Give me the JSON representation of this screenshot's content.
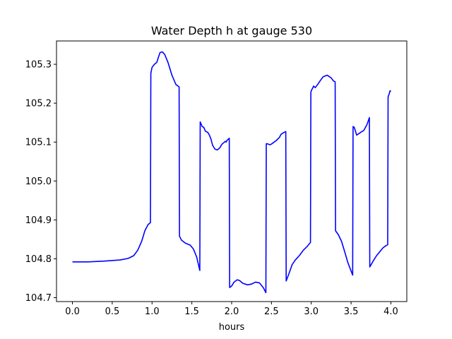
{
  "chart_data": {
    "type": "line",
    "title": "Water Depth h at gauge 530",
    "xlabel": "hours",
    "ylabel": "",
    "xlim": [
      -0.2,
      4.2
    ],
    "ylim": [
      104.69,
      105.36
    ],
    "xticks": [
      0.0,
      0.5,
      1.0,
      1.5,
      2.0,
      2.5,
      3.0,
      3.5,
      4.0
    ],
    "xtick_labels": [
      "0.0",
      "0.5",
      "1.0",
      "1.5",
      "2.0",
      "2.5",
      "3.0",
      "3.5",
      "4.0"
    ],
    "yticks": [
      104.7,
      104.8,
      104.9,
      105.0,
      105.1,
      105.2,
      105.3
    ],
    "ytick_labels": [
      "104.7",
      "104.8",
      "104.9",
      "105.0",
      "105.1",
      "105.2",
      "105.3"
    ],
    "grid": false,
    "series": [
      {
        "color": "#0000ff",
        "points": [
          [
            0.0,
            104.792
          ],
          [
            0.2,
            104.792
          ],
          [
            0.4,
            104.794
          ],
          [
            0.6,
            104.797
          ],
          [
            0.7,
            104.801
          ],
          [
            0.77,
            104.808
          ],
          [
            0.82,
            104.822
          ],
          [
            0.87,
            104.845
          ],
          [
            0.91,
            104.872
          ],
          [
            0.95,
            104.888
          ],
          [
            0.98,
            104.893
          ],
          [
            0.985,
            105.277
          ],
          [
            1.0,
            105.292
          ],
          [
            1.03,
            105.3
          ],
          [
            1.06,
            105.305
          ],
          [
            1.08,
            105.318
          ],
          [
            1.1,
            105.33
          ],
          [
            1.13,
            105.332
          ],
          [
            1.16,
            105.325
          ],
          [
            1.2,
            105.305
          ],
          [
            1.25,
            105.272
          ],
          [
            1.3,
            105.248
          ],
          [
            1.34,
            105.242
          ],
          [
            1.345,
            104.858
          ],
          [
            1.37,
            104.848
          ],
          [
            1.42,
            104.84
          ],
          [
            1.48,
            104.835
          ],
          [
            1.52,
            104.825
          ],
          [
            1.56,
            104.805
          ],
          [
            1.6,
            104.77
          ],
          [
            1.605,
            105.152
          ],
          [
            1.63,
            105.14
          ],
          [
            1.65,
            105.138
          ],
          [
            1.67,
            105.128
          ],
          [
            1.7,
            105.125
          ],
          [
            1.72,
            105.118
          ],
          [
            1.74,
            105.108
          ],
          [
            1.76,
            105.092
          ],
          [
            1.79,
            105.082
          ],
          [
            1.82,
            105.08
          ],
          [
            1.85,
            105.085
          ],
          [
            1.88,
            105.095
          ],
          [
            1.91,
            105.1
          ],
          [
            1.92,
            105.102
          ],
          [
            1.93,
            105.1
          ],
          [
            1.94,
            105.104
          ],
          [
            1.96,
            105.108
          ],
          [
            1.97,
            105.11
          ],
          [
            1.975,
            104.726
          ],
          [
            2.0,
            104.73
          ],
          [
            2.03,
            104.74
          ],
          [
            2.07,
            104.746
          ],
          [
            2.1,
            104.744
          ],
          [
            2.14,
            104.737
          ],
          [
            2.2,
            104.733
          ],
          [
            2.25,
            104.735
          ],
          [
            2.3,
            104.74
          ],
          [
            2.35,
            104.738
          ],
          [
            2.4,
            104.725
          ],
          [
            2.43,
            104.713
          ],
          [
            2.435,
            105.096
          ],
          [
            2.46,
            105.095
          ],
          [
            2.48,
            105.093
          ],
          [
            2.5,
            105.095
          ],
          [
            2.52,
            105.098
          ],
          [
            2.56,
            105.104
          ],
          [
            2.6,
            105.112
          ],
          [
            2.62,
            105.12
          ],
          [
            2.65,
            105.124
          ],
          [
            2.68,
            105.127
          ],
          [
            2.685,
            104.743
          ],
          [
            2.72,
            104.762
          ],
          [
            2.76,
            104.785
          ],
          [
            2.8,
            104.797
          ],
          [
            2.85,
            104.808
          ],
          [
            2.9,
            104.822
          ],
          [
            2.95,
            104.832
          ],
          [
            2.99,
            104.842
          ],
          [
            2.995,
            105.228
          ],
          [
            3.0,
            105.232
          ],
          [
            3.03,
            105.244
          ],
          [
            3.05,
            105.24
          ],
          [
            3.08,
            105.248
          ],
          [
            3.12,
            105.26
          ],
          [
            3.15,
            105.268
          ],
          [
            3.2,
            105.272
          ],
          [
            3.25,
            105.265
          ],
          [
            3.28,
            105.257
          ],
          [
            3.3,
            105.255
          ],
          [
            3.305,
            104.872
          ],
          [
            3.34,
            104.862
          ],
          [
            3.38,
            104.845
          ],
          [
            3.42,
            104.818
          ],
          [
            3.46,
            104.79
          ],
          [
            3.52,
            104.758
          ],
          [
            3.525,
            105.14
          ],
          [
            3.54,
            105.138
          ],
          [
            3.56,
            105.125
          ],
          [
            3.57,
            105.118
          ],
          [
            3.6,
            105.122
          ],
          [
            3.62,
            105.125
          ],
          [
            3.66,
            105.13
          ],
          [
            3.7,
            105.145
          ],
          [
            3.73,
            105.163
          ],
          [
            3.735,
            104.779
          ],
          [
            3.78,
            104.795
          ],
          [
            3.82,
            104.808
          ],
          [
            3.86,
            104.818
          ],
          [
            3.9,
            104.828
          ],
          [
            3.94,
            104.834
          ],
          [
            3.96,
            104.836
          ],
          [
            3.965,
            105.216
          ],
          [
            3.98,
            105.225
          ],
          [
            3.99,
            105.232
          ],
          [
            4.0,
            105.23
          ]
        ]
      }
    ]
  }
}
